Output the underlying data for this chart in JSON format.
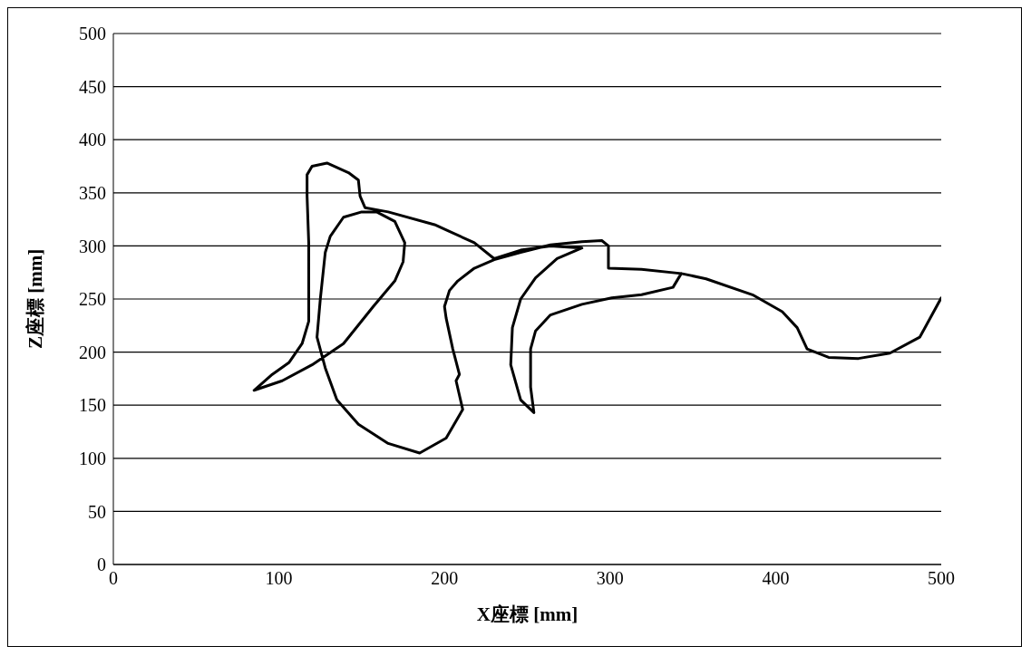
{
  "chart_data": {
    "type": "line",
    "xlabel": "X座標 [mm]",
    "ylabel": "Z座標 [mm]",
    "xlim": [
      0,
      500
    ],
    "xticks": [
      0,
      100,
      200,
      300,
      400,
      500
    ],
    "ylim": [
      0,
      500
    ],
    "yticks": [
      0,
      50,
      100,
      150,
      200,
      250,
      300,
      350,
      400,
      450,
      500
    ],
    "grid": "y",
    "marker": "none",
    "line_style": "solid",
    "series": [
      {
        "color": "#000000",
        "x": [
          343,
          338,
          319,
          301,
          283,
          264,
          255,
          252,
          252,
          254,
          246,
          240,
          241,
          246,
          255,
          268,
          283,
          264,
          246,
          230,
          218,
          194,
          166,
          152,
          149,
          148,
          142,
          129,
          120,
          117,
          117,
          118,
          118,
          118,
          114,
          106,
          96,
          85,
          102,
          120,
          139,
          157,
          170,
          175,
          176,
          170,
          159,
          150,
          139,
          131,
          128,
          125,
          123,
          128,
          135,
          148,
          166,
          185,
          201,
          211,
          207,
          209,
          205,
          201,
          200,
          203,
          208,
          218,
          230,
          246,
          264,
          283,
          295,
          299,
          299,
          319,
          343,
          358,
          386,
          404,
          413,
          419,
          432,
          450,
          469,
          487,
          500
        ],
        "values": [
          274,
          261,
          254,
          251,
          245,
          235,
          220,
          203,
          167,
          143,
          155,
          188,
          223,
          250,
          270,
          288,
          298,
          300,
          296,
          288,
          303,
          320,
          332,
          336,
          347,
          362,
          369,
          378,
          375,
          367,
          347,
          303,
          258,
          229,
          208,
          190,
          179,
          164,
          173,
          188,
          208,
          243,
          267,
          285,
          303,
          323,
          332,
          332,
          327,
          309,
          294,
          250,
          214,
          185,
          155,
          132,
          114,
          105,
          119,
          146,
          173,
          179,
          203,
          232,
          243,
          258,
          267,
          279,
          287,
          294,
          301,
          304,
          305,
          300,
          279,
          278,
          274,
          269,
          254,
          238,
          223,
          203,
          195,
          194,
          199,
          214,
          251
        ]
      }
    ]
  }
}
